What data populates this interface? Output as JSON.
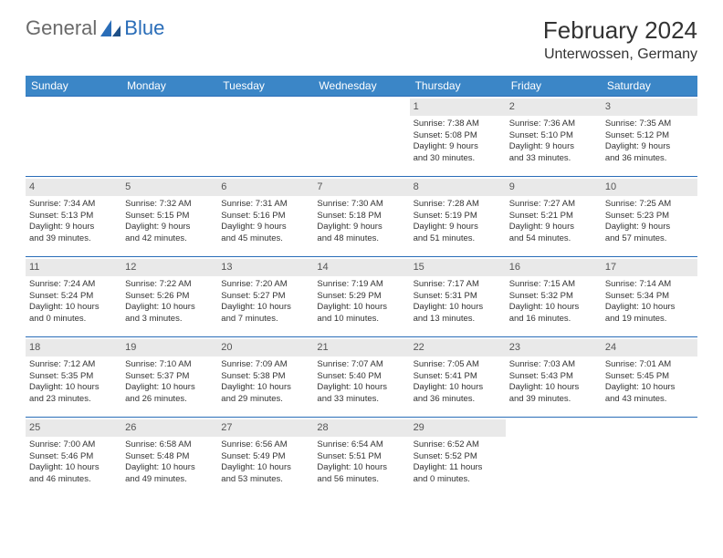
{
  "brand": {
    "general": "General",
    "blue": "Blue"
  },
  "title": "February 2024",
  "location": "Unterwossen, Germany",
  "colors": {
    "header_bg": "#3b86c7",
    "header_text": "#ffffff",
    "row_border": "#2a6db8",
    "daynum_bg": "#e9e9e9",
    "body_text": "#333333",
    "logo_blue": "#2a6db8"
  },
  "weekdays": [
    "Sunday",
    "Monday",
    "Tuesday",
    "Wednesday",
    "Thursday",
    "Friday",
    "Saturday"
  ],
  "weeks": [
    [
      {
        "day": "",
        "sunrise": "",
        "sunset": "",
        "daylight1": "",
        "daylight2": ""
      },
      {
        "day": "",
        "sunrise": "",
        "sunset": "",
        "daylight1": "",
        "daylight2": ""
      },
      {
        "day": "",
        "sunrise": "",
        "sunset": "",
        "daylight1": "",
        "daylight2": ""
      },
      {
        "day": "",
        "sunrise": "",
        "sunset": "",
        "daylight1": "",
        "daylight2": ""
      },
      {
        "day": "1",
        "sunrise": "Sunrise: 7:38 AM",
        "sunset": "Sunset: 5:08 PM",
        "daylight1": "Daylight: 9 hours",
        "daylight2": "and 30 minutes."
      },
      {
        "day": "2",
        "sunrise": "Sunrise: 7:36 AM",
        "sunset": "Sunset: 5:10 PM",
        "daylight1": "Daylight: 9 hours",
        "daylight2": "and 33 minutes."
      },
      {
        "day": "3",
        "sunrise": "Sunrise: 7:35 AM",
        "sunset": "Sunset: 5:12 PM",
        "daylight1": "Daylight: 9 hours",
        "daylight2": "and 36 minutes."
      }
    ],
    [
      {
        "day": "4",
        "sunrise": "Sunrise: 7:34 AM",
        "sunset": "Sunset: 5:13 PM",
        "daylight1": "Daylight: 9 hours",
        "daylight2": "and 39 minutes."
      },
      {
        "day": "5",
        "sunrise": "Sunrise: 7:32 AM",
        "sunset": "Sunset: 5:15 PM",
        "daylight1": "Daylight: 9 hours",
        "daylight2": "and 42 minutes."
      },
      {
        "day": "6",
        "sunrise": "Sunrise: 7:31 AM",
        "sunset": "Sunset: 5:16 PM",
        "daylight1": "Daylight: 9 hours",
        "daylight2": "and 45 minutes."
      },
      {
        "day": "7",
        "sunrise": "Sunrise: 7:30 AM",
        "sunset": "Sunset: 5:18 PM",
        "daylight1": "Daylight: 9 hours",
        "daylight2": "and 48 minutes."
      },
      {
        "day": "8",
        "sunrise": "Sunrise: 7:28 AM",
        "sunset": "Sunset: 5:19 PM",
        "daylight1": "Daylight: 9 hours",
        "daylight2": "and 51 minutes."
      },
      {
        "day": "9",
        "sunrise": "Sunrise: 7:27 AM",
        "sunset": "Sunset: 5:21 PM",
        "daylight1": "Daylight: 9 hours",
        "daylight2": "and 54 minutes."
      },
      {
        "day": "10",
        "sunrise": "Sunrise: 7:25 AM",
        "sunset": "Sunset: 5:23 PM",
        "daylight1": "Daylight: 9 hours",
        "daylight2": "and 57 minutes."
      }
    ],
    [
      {
        "day": "11",
        "sunrise": "Sunrise: 7:24 AM",
        "sunset": "Sunset: 5:24 PM",
        "daylight1": "Daylight: 10 hours",
        "daylight2": "and 0 minutes."
      },
      {
        "day": "12",
        "sunrise": "Sunrise: 7:22 AM",
        "sunset": "Sunset: 5:26 PM",
        "daylight1": "Daylight: 10 hours",
        "daylight2": "and 3 minutes."
      },
      {
        "day": "13",
        "sunrise": "Sunrise: 7:20 AM",
        "sunset": "Sunset: 5:27 PM",
        "daylight1": "Daylight: 10 hours",
        "daylight2": "and 7 minutes."
      },
      {
        "day": "14",
        "sunrise": "Sunrise: 7:19 AM",
        "sunset": "Sunset: 5:29 PM",
        "daylight1": "Daylight: 10 hours",
        "daylight2": "and 10 minutes."
      },
      {
        "day": "15",
        "sunrise": "Sunrise: 7:17 AM",
        "sunset": "Sunset: 5:31 PM",
        "daylight1": "Daylight: 10 hours",
        "daylight2": "and 13 minutes."
      },
      {
        "day": "16",
        "sunrise": "Sunrise: 7:15 AM",
        "sunset": "Sunset: 5:32 PM",
        "daylight1": "Daylight: 10 hours",
        "daylight2": "and 16 minutes."
      },
      {
        "day": "17",
        "sunrise": "Sunrise: 7:14 AM",
        "sunset": "Sunset: 5:34 PM",
        "daylight1": "Daylight: 10 hours",
        "daylight2": "and 19 minutes."
      }
    ],
    [
      {
        "day": "18",
        "sunrise": "Sunrise: 7:12 AM",
        "sunset": "Sunset: 5:35 PM",
        "daylight1": "Daylight: 10 hours",
        "daylight2": "and 23 minutes."
      },
      {
        "day": "19",
        "sunrise": "Sunrise: 7:10 AM",
        "sunset": "Sunset: 5:37 PM",
        "daylight1": "Daylight: 10 hours",
        "daylight2": "and 26 minutes."
      },
      {
        "day": "20",
        "sunrise": "Sunrise: 7:09 AM",
        "sunset": "Sunset: 5:38 PM",
        "daylight1": "Daylight: 10 hours",
        "daylight2": "and 29 minutes."
      },
      {
        "day": "21",
        "sunrise": "Sunrise: 7:07 AM",
        "sunset": "Sunset: 5:40 PM",
        "daylight1": "Daylight: 10 hours",
        "daylight2": "and 33 minutes."
      },
      {
        "day": "22",
        "sunrise": "Sunrise: 7:05 AM",
        "sunset": "Sunset: 5:41 PM",
        "daylight1": "Daylight: 10 hours",
        "daylight2": "and 36 minutes."
      },
      {
        "day": "23",
        "sunrise": "Sunrise: 7:03 AM",
        "sunset": "Sunset: 5:43 PM",
        "daylight1": "Daylight: 10 hours",
        "daylight2": "and 39 minutes."
      },
      {
        "day": "24",
        "sunrise": "Sunrise: 7:01 AM",
        "sunset": "Sunset: 5:45 PM",
        "daylight1": "Daylight: 10 hours",
        "daylight2": "and 43 minutes."
      }
    ],
    [
      {
        "day": "25",
        "sunrise": "Sunrise: 7:00 AM",
        "sunset": "Sunset: 5:46 PM",
        "daylight1": "Daylight: 10 hours",
        "daylight2": "and 46 minutes."
      },
      {
        "day": "26",
        "sunrise": "Sunrise: 6:58 AM",
        "sunset": "Sunset: 5:48 PM",
        "daylight1": "Daylight: 10 hours",
        "daylight2": "and 49 minutes."
      },
      {
        "day": "27",
        "sunrise": "Sunrise: 6:56 AM",
        "sunset": "Sunset: 5:49 PM",
        "daylight1": "Daylight: 10 hours",
        "daylight2": "and 53 minutes."
      },
      {
        "day": "28",
        "sunrise": "Sunrise: 6:54 AM",
        "sunset": "Sunset: 5:51 PM",
        "daylight1": "Daylight: 10 hours",
        "daylight2": "and 56 minutes."
      },
      {
        "day": "29",
        "sunrise": "Sunrise: 6:52 AM",
        "sunset": "Sunset: 5:52 PM",
        "daylight1": "Daylight: 11 hours",
        "daylight2": "and 0 minutes."
      },
      {
        "day": "",
        "sunrise": "",
        "sunset": "",
        "daylight1": "",
        "daylight2": ""
      },
      {
        "day": "",
        "sunrise": "",
        "sunset": "",
        "daylight1": "",
        "daylight2": ""
      }
    ]
  ]
}
